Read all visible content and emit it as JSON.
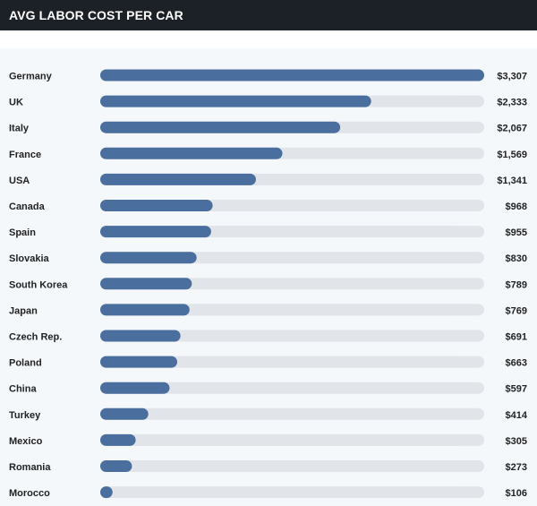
{
  "header": {
    "title": "AVG LABOR COST PER CAR"
  },
  "colors": {
    "header_bg": "#1c2127",
    "bar_fill": "#4a6e9e",
    "track": "#e1e5ea",
    "text": "#222222",
    "page_bg": "#f4f8fb"
  },
  "chart_data": {
    "type": "bar",
    "orientation": "horizontal",
    "title": "AVG LABOR COST PER CAR",
    "categories": [
      "Germany",
      "UK",
      "Italy",
      "France",
      "USA",
      "Canada",
      "Spain",
      "Slovakia",
      "South Korea",
      "Japan",
      "Czech Rep.",
      "Poland",
      "China",
      "Turkey",
      "Mexico",
      "Romania",
      "Morocco"
    ],
    "values": [
      3307,
      2333,
      2067,
      1569,
      1341,
      968,
      955,
      830,
      789,
      769,
      691,
      663,
      597,
      414,
      305,
      273,
      106
    ],
    "value_labels": [
      "$3,307",
      "$2,333",
      "$2,067",
      "$1,569",
      "$1,341",
      "$968",
      "$955",
      "$830",
      "$789",
      "$769",
      "$691",
      "$663",
      "$597",
      "$414",
      "$305",
      "$273",
      "$106"
    ],
    "xlim": [
      0,
      3307
    ],
    "grid": false,
    "legend": "none"
  }
}
